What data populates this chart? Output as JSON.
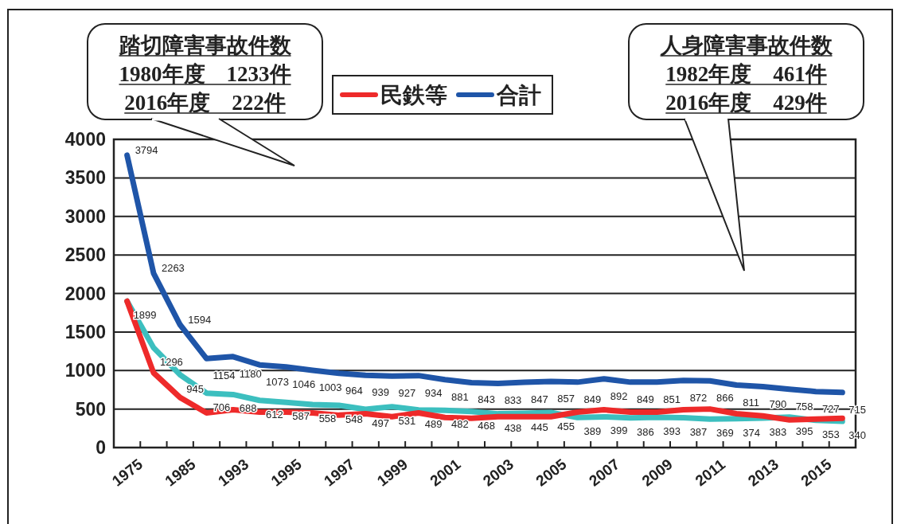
{
  "chart_data": {
    "type": "line",
    "categories": [
      "1975",
      null,
      "1985",
      null,
      "1993",
      null,
      "1995",
      null,
      "1997",
      null,
      "1999",
      null,
      "2001",
      null,
      "2003",
      null,
      "2005",
      null,
      "2007",
      null,
      "2009",
      null,
      "2011",
      null,
      "2013",
      null,
      "2015",
      null
    ],
    "series": [
      {
        "color": "#3cbfbf",
        "values": [
          1899,
          1296,
          945,
          706,
          688,
          612,
          587,
          558,
          548,
          497,
          531,
          489,
          482,
          468,
          438,
          445,
          455,
          389,
          399,
          386,
          393,
          387,
          369,
          374,
          383,
          395,
          353,
          340
        ],
        "value_labels": [
          "1899",
          "1296",
          "945",
          "706",
          "688",
          "612",
          "587",
          "558",
          "548",
          "497",
          "531",
          "489",
          "482",
          "468",
          "438",
          "445",
          "455",
          "389",
          "399",
          "386",
          "393",
          "387",
          "369",
          "374",
          "383",
          "395",
          "353",
          "340"
        ]
      },
      {
        "name": "民鉄等",
        "color": "#ee2a2a",
        "values": [
          1900,
          970,
          650,
          450,
          490,
          460,
          460,
          450,
          420,
          440,
          400,
          450,
          390,
          380,
          400,
          400,
          400,
          460,
          490,
          460,
          460,
          490,
          500,
          440,
          410,
          360,
          370,
          380
        ]
      },
      {
        "name": "合計",
        "color": "#1f55a8",
        "values": [
          3794,
          2263,
          1594,
          1154,
          1180,
          1073,
          1046,
          1003,
          964,
          939,
          927,
          934,
          881,
          843,
          833,
          847,
          857,
          849,
          892,
          849,
          851,
          872,
          866,
          811,
          790,
          758,
          727,
          715
        ],
        "value_labels": [
          "3794",
          "2263",
          "1594",
          "1154",
          "1180",
          "1073",
          "1046",
          "1003",
          "964",
          "939",
          "927",
          "934",
          "881",
          "843",
          "833",
          "847",
          "857",
          "849",
          "892",
          "849",
          "851",
          "872",
          "866",
          "811",
          "790",
          "758",
          "727",
          "715"
        ]
      }
    ],
    "ylim": [
      0,
      4000
    ],
    "yticks": [
      0,
      500,
      1000,
      1500,
      2000,
      2500,
      3000,
      3500,
      4000
    ],
    "grid": "y",
    "legend": "top",
    "annotations": [
      {
        "text": "踏切障害事故件数\n1980年度　1233件\n2016年度　222件"
      },
      {
        "text": "人身障害事故件数\n1982年度　461件\n2016年度　429件"
      }
    ]
  }
}
